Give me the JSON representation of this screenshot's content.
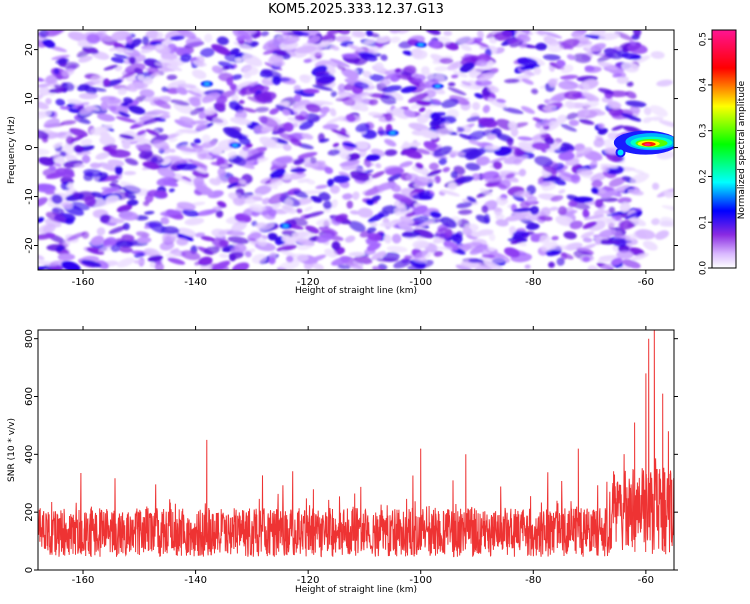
{
  "figure": {
    "title": "KOM5.2025.333.12.37.G13"
  },
  "chart_data": [
    {
      "type": "heatmap",
      "xlabel": "Height of straight line (km)",
      "ylabel": "Frequency (Hz)",
      "xlim": [
        -168,
        -55
      ],
      "ylim": [
        -25,
        24
      ],
      "xticks": [
        -160,
        -140,
        -120,
        -100,
        -80,
        -60
      ],
      "yticks": [
        -20,
        -10,
        0,
        10,
        20
      ],
      "grid": false,
      "colorbar": {
        "label": "Normalized spectral amplitude",
        "range": [
          0,
          0.52
        ],
        "ticks": [
          "0.0",
          "0.1",
          "0.2",
          "0.3",
          "0.4",
          "0.5"
        ],
        "tick_values": [
          0.0,
          0.1,
          0.2,
          0.3,
          0.4,
          0.5
        ],
        "colormap": [
          "#ffffff",
          "#8a2be2",
          "#0000ff",
          "#00ffff",
          "#00ff00",
          "#ffff00",
          "#ff0000",
          "#ff1493"
        ]
      },
      "description_values": {
        "background_amplitude_typical": 0.05,
        "background_amplitude_max": 0.12,
        "signal_region": {
          "x_range": [
            -66,
            -56
          ],
          "y_range": [
            -2,
            4
          ],
          "peak_amplitude": 0.52,
          "peak_x": -58,
          "peak_y": 1
        }
      }
    },
    {
      "type": "line",
      "xlabel": "Height of straight line (km)",
      "ylabel": "SNR (10 * v/v)",
      "xlim": [
        -168,
        -55
      ],
      "ylim": [
        0,
        830
      ],
      "xticks": [
        -160,
        -140,
        -120,
        -100,
        -80,
        -60
      ],
      "yticks": [
        0,
        200,
        400,
        600,
        800
      ],
      "grid": false,
      "series": [
        {
          "color": "#ee3333",
          "x_range": [
            -168,
            -55
          ],
          "baseline_mean": 130,
          "baseline_spread": 170,
          "notable_points": [
            {
              "x": -138,
              "y": 450
            },
            {
              "x": -100,
              "y": 420
            },
            {
              "x": -92,
              "y": 400
            },
            {
              "x": -72,
              "y": 420
            },
            {
              "x": -62,
              "y": 510
            },
            {
              "x": -60,
              "y": 680
            },
            {
              "x": -59.5,
              "y": 800
            },
            {
              "x": -58.5,
              "y": 830
            },
            {
              "x": -57,
              "y": 610
            },
            {
              "x": -56,
              "y": 480
            }
          ]
        }
      ]
    }
  ]
}
